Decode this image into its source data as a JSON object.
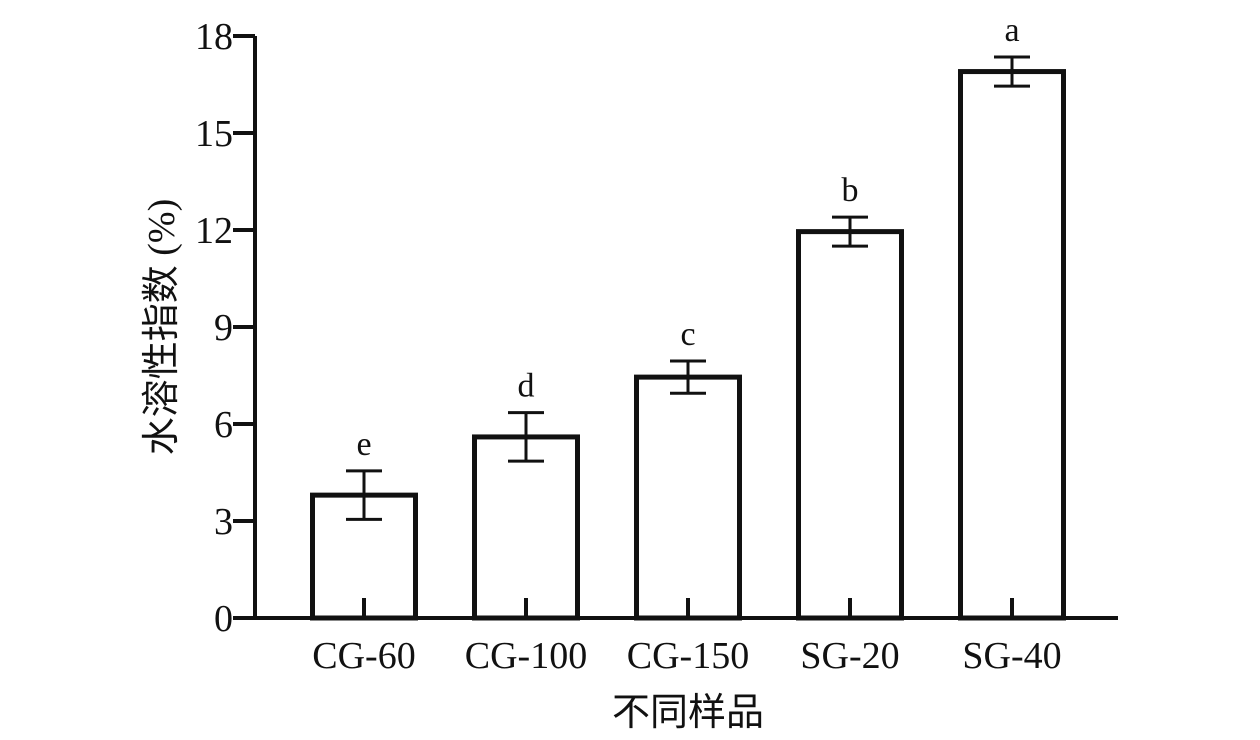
{
  "chart_data": {
    "type": "bar",
    "title": "",
    "xlabel": "不同样品",
    "ylabel": "水溶性指数 (%)",
    "ylim": [
      0,
      18
    ],
    "yticks": [
      0,
      3,
      6,
      9,
      12,
      15,
      18
    ],
    "categories": [
      "CG-60",
      "CG-100",
      "CG-150",
      "SG-20",
      "SG-40"
    ],
    "values": [
      3.8,
      5.6,
      7.45,
      11.95,
      16.9
    ],
    "errors": [
      0.75,
      0.75,
      0.5,
      0.45,
      0.45
    ],
    "significance": [
      "e",
      "d",
      "c",
      "b",
      "a"
    ],
    "grid": false,
    "colors": {
      "bar_fill": "#ffffff",
      "stroke": "#111111"
    }
  }
}
